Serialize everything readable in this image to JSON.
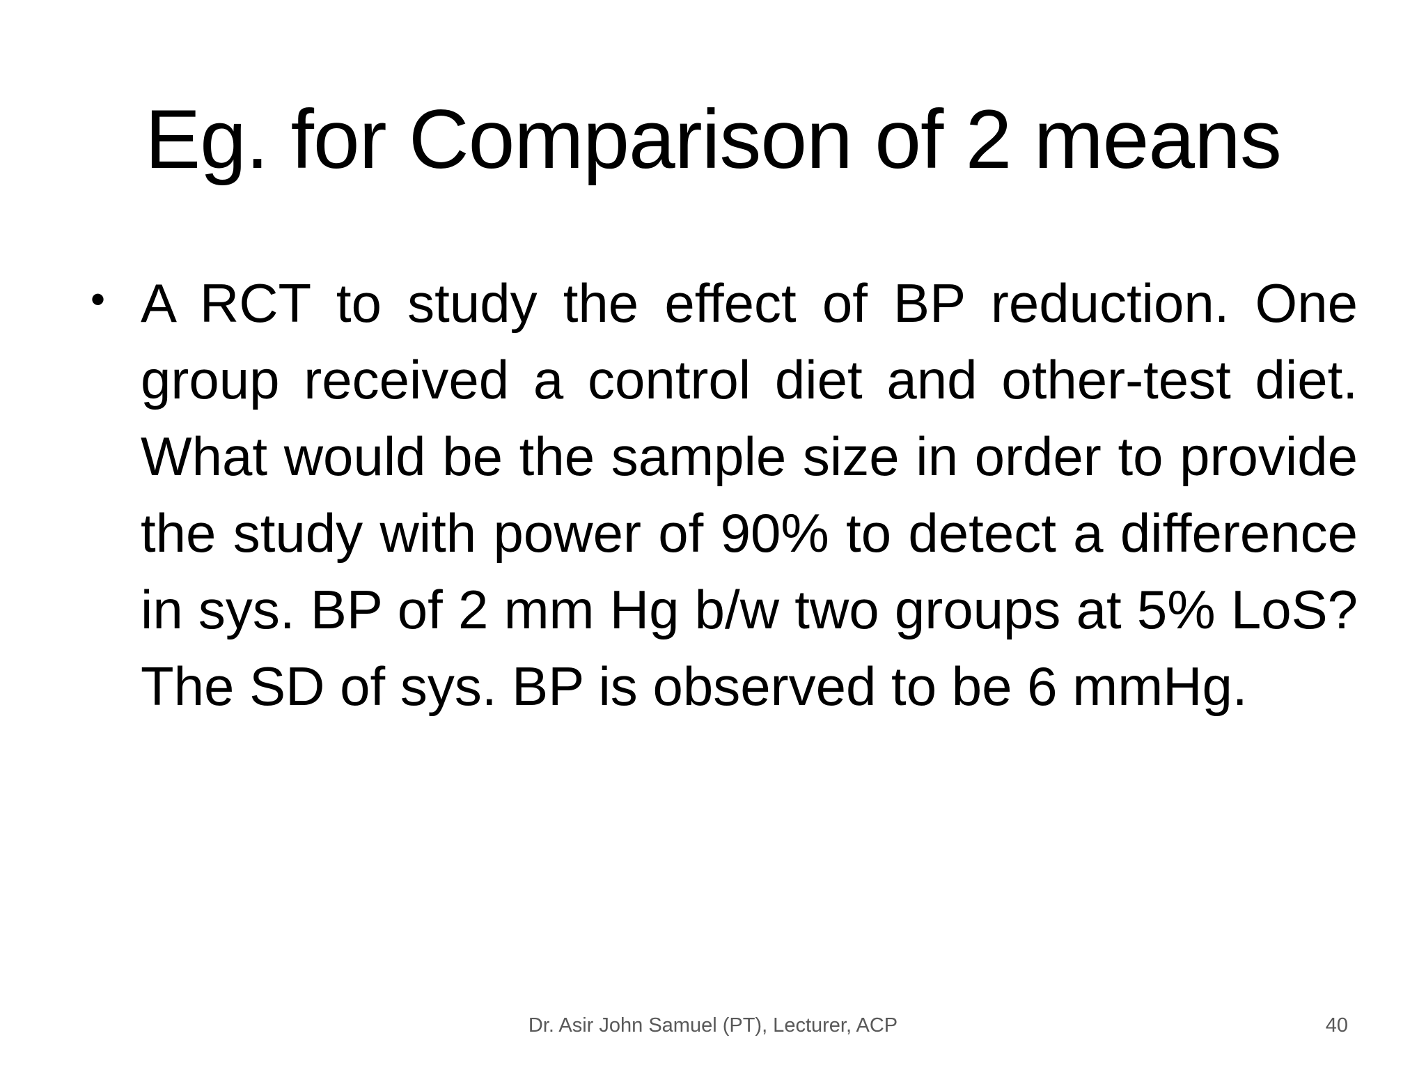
{
  "slide": {
    "title": "Eg. for Comparison of 2 means",
    "bullets": [
      {
        "marker": "•",
        "text": "A RCT to study the effect of BP reduction. One group received a control diet and other-test diet. What would be the sample size in order to provide the study with power of 90% to detect a difference in sys. BP of 2 mm Hg b/w two groups at 5% LoS? The SD of sys. BP is observed to be 6 mmHg."
      }
    ],
    "footer": {
      "author": "Dr. Asir John Samuel (PT), Lecturer, ACP",
      "page_number": "40"
    }
  }
}
